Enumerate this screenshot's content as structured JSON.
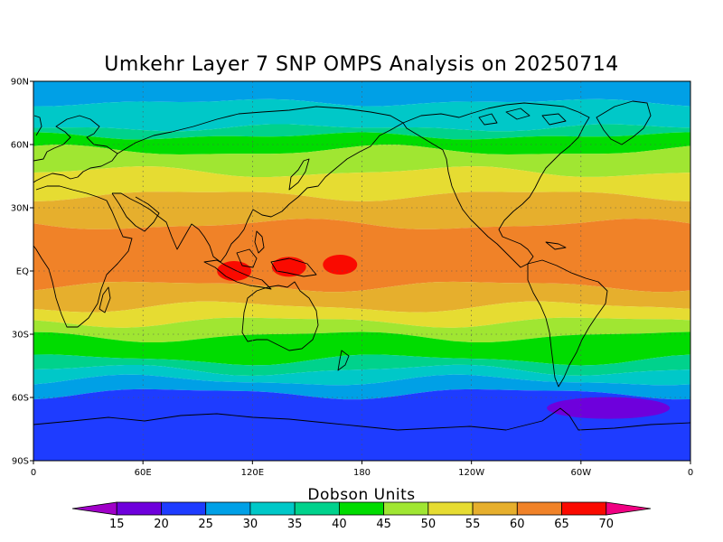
{
  "title": "Umkehr Layer 7 SNP OMPS Analysis on 20250714",
  "colorbar": {
    "label": "Dobson Units",
    "ticks": [
      "15",
      "20",
      "25",
      "30",
      "35",
      "40",
      "45",
      "50",
      "55",
      "60",
      "65",
      "70"
    ],
    "colors": [
      "#a000c8",
      "#6e00dc",
      "#1e3cff",
      "#00a0e6",
      "#00c8c8",
      "#00d28c",
      "#00dc00",
      "#a0e632",
      "#e6dc32",
      "#e6af2d",
      "#f08228",
      "#fa0a00",
      "#f00082"
    ]
  },
  "map": {
    "lon_labels": [
      "0",
      "60E",
      "120E",
      "180",
      "120W",
      "60W",
      "0"
    ],
    "lat_labels": [
      "90N",
      "60N",
      "30N",
      "EQ",
      "30S",
      "60S",
      "90S"
    ],
    "grid": "dotted"
  },
  "chart_data": {
    "type": "heatmap",
    "title": "Umkehr Layer 7 SNP OMPS Analysis on 20250714",
    "units": "Dobson Units",
    "x_range": [
      0,
      360
    ],
    "y_range": [
      -90,
      90
    ],
    "contour_levels": [
      15,
      20,
      25,
      30,
      35,
      40,
      45,
      50,
      55,
      60,
      65,
      70
    ],
    "latitudinal_bands": [
      {
        "lat_from": 90,
        "lat_to": 80,
        "value_range": "25-30"
      },
      {
        "lat_from": 80,
        "lat_to": 68,
        "value_range": "30-35"
      },
      {
        "lat_from": 68,
        "lat_to": 64,
        "value_range": "35-40"
      },
      {
        "lat_from": 64,
        "lat_to": 57,
        "value_range": "40-45"
      },
      {
        "lat_from": 57,
        "lat_to": 47,
        "value_range": "45-50"
      },
      {
        "lat_from": 47,
        "lat_to": 36,
        "value_range": "50-55"
      },
      {
        "lat_from": 36,
        "lat_to": 22,
        "value_range": "55-60"
      },
      {
        "lat_from": 22,
        "lat_to": -7,
        "value_range": "60-65"
      },
      {
        "lat_from": -7,
        "lat_to": -17,
        "value_range": "55-60"
      },
      {
        "lat_from": -17,
        "lat_to": -24,
        "value_range": "50-55"
      },
      {
        "lat_from": -24,
        "lat_to": -31,
        "value_range": "45-50"
      },
      {
        "lat_from": -31,
        "lat_to": -42,
        "value_range": "40-45"
      },
      {
        "lat_from": -42,
        "lat_to": -47,
        "value_range": "35-40"
      },
      {
        "lat_from": -47,
        "lat_to": -52,
        "value_range": "30-35"
      },
      {
        "lat_from": -52,
        "lat_to": -58,
        "value_range": "25-30"
      },
      {
        "lat_from": -58,
        "lat_to": -90,
        "value_range": "20-25"
      }
    ],
    "local_maxima": [
      {
        "lon": 110,
        "lat": 0,
        "value_range": "65-70"
      },
      {
        "lon": 140,
        "lat": 2,
        "value_range": "65-70"
      },
      {
        "lon": 168,
        "lat": 3,
        "value_range": "65-70"
      }
    ],
    "local_minima": [
      {
        "lon": 315,
        "lat": -65,
        "value_range": "15-20"
      }
    ]
  }
}
